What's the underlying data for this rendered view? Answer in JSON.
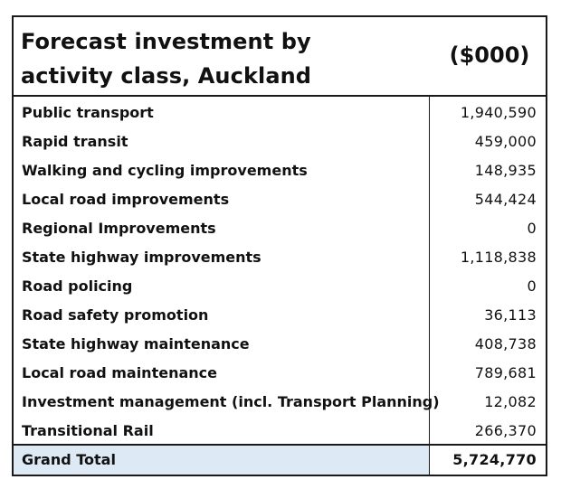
{
  "table": {
    "title": "Forecast investment by activity class, Auckland",
    "unit_header": "($000)",
    "rows": [
      {
        "label": "Public transport",
        "value": "1,940,590"
      },
      {
        "label": "Rapid transit",
        "value": "459,000"
      },
      {
        "label": "Walking and cycling improvements",
        "value": "148,935"
      },
      {
        "label": "Local road improvements",
        "value": "544,424"
      },
      {
        "label": "Regional Improvements",
        "value": "0"
      },
      {
        "label": "State highway improvements",
        "value": "1,118,838"
      },
      {
        "label": "Road policing",
        "value": "0"
      },
      {
        "label": "Road safety promotion",
        "value": "36,113"
      },
      {
        "label": "State highway maintenance",
        "value": "408,738"
      },
      {
        "label": "Local road maintenance",
        "value": "789,681"
      },
      {
        "label": "Investment management (incl. Transport Planning)",
        "value": "12,082"
      },
      {
        "label": "Transitional Rail",
        "value": "266,370"
      }
    ],
    "total": {
      "label": "Grand Total",
      "value": "5,724,770"
    }
  },
  "colors": {
    "border": "#1a1a1a",
    "total_row_background": "#dde9f5",
    "text": "#111111"
  }
}
